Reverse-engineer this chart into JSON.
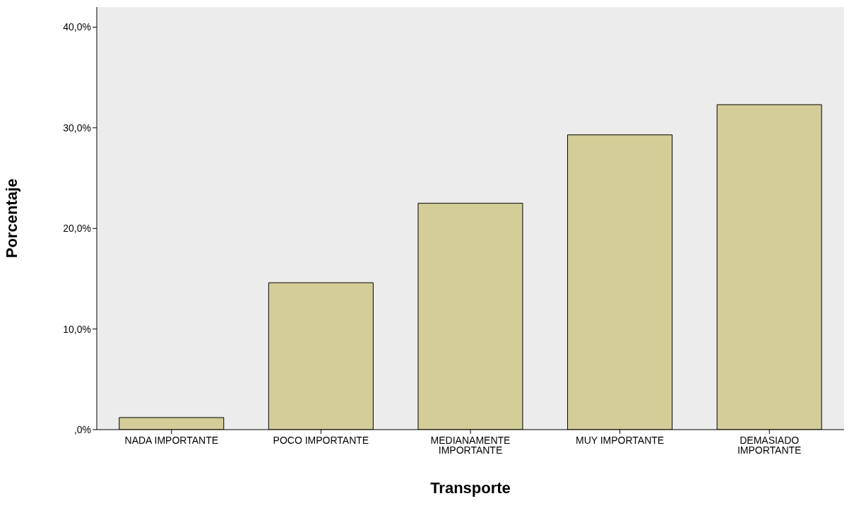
{
  "chart_data": {
    "type": "bar",
    "xlabel": "Transporte",
    "ylabel": "Porcentaje",
    "categories": [
      "NADA IMPORTANTE",
      "POCO IMPORTANTE",
      "MEDIANAMENTE IMPORTANTE",
      "MUY IMPORTANTE",
      "DEMASIADO IMPORTANTE"
    ],
    "values": [
      1.2,
      14.6,
      22.5,
      29.3,
      32.3
    ],
    "color": "#d3ce97",
    "ylim": [
      0,
      42
    ],
    "yticks": [
      {
        "value": 0,
        "label": ",0%"
      },
      {
        "value": 10,
        "label": "10,0%"
      },
      {
        "value": 20,
        "label": "20,0%"
      },
      {
        "value": 30,
        "label": "30,0%"
      },
      {
        "value": 40,
        "label": "40,0%"
      }
    ],
    "grid": false
  }
}
